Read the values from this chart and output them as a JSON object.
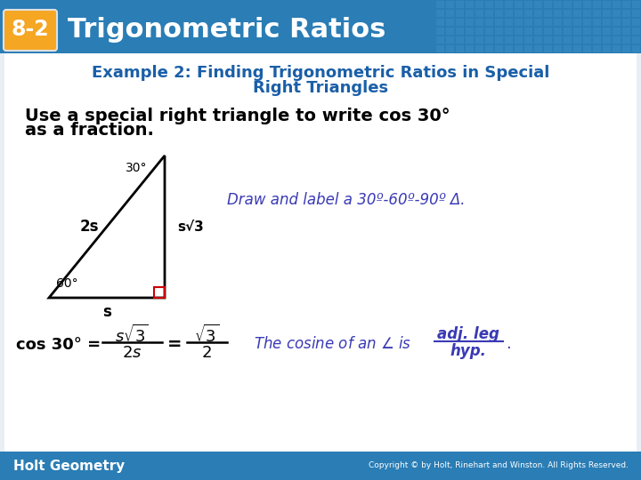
{
  "bg_color": "#e8eef4",
  "header_bg": "#2a7db5",
  "header_text": "Trigonometric Ratios",
  "header_badge_bg": "#f5a623",
  "header_badge_text": "8-2",
  "example_title_line1": "Example 2: Finding Trigonometric Ratios in Special",
  "example_title_line2": "Right Triangles",
  "example_title_color": "#1a5fa8",
  "body_text_line1": "Use a special right triangle to write cos 30°",
  "body_text_line2": "as a fraction.",
  "draw_label_text": "Draw and label a 30º-60º-90º Δ.",
  "draw_label_color": "#3a3ab5",
  "triangle_color": "#000000",
  "label_2s": "2s",
  "label_30": "30°",
  "label_ssqrt3": "s√3",
  "label_60": "60°",
  "label_s": "s",
  "cosine_note_color": "#3a3ab5",
  "footer_bg": "#2a7db5",
  "footer_text": "Holt Geometry",
  "footer_copyright": "Copyright © by Holt, Rinehart and Winston. All Rights Reserved.",
  "tile_pattern_color": "#3a8fc5"
}
